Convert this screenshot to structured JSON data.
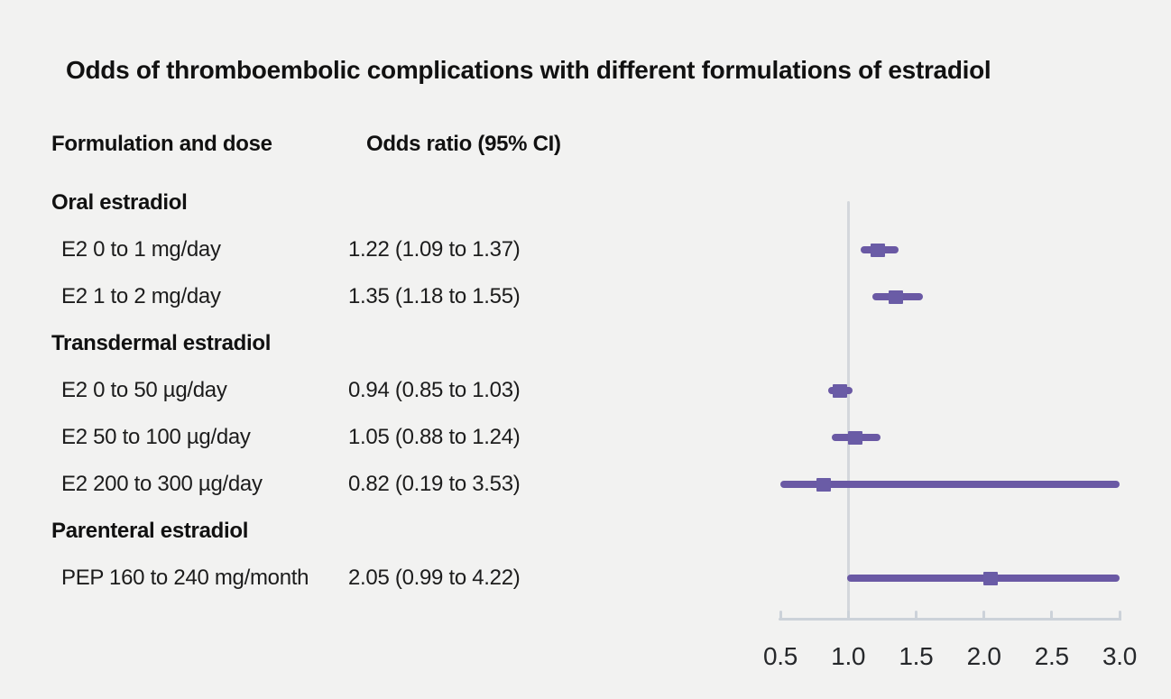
{
  "title": "Odds of thromboembolic complications with different formulations of estradiol",
  "columns": {
    "label_header": "Formulation and dose",
    "value_header": "Odds ratio (95% CI)"
  },
  "chart_data": {
    "type": "forest",
    "title": "Odds of thromboembolic complications with different formulations of estradiol",
    "xlim": [
      0.5,
      3.0
    ],
    "reference_line": 1.0,
    "ticks": [
      {
        "value": 0.5,
        "label": "0.5"
      },
      {
        "value": 1.0,
        "label": "1.0"
      },
      {
        "value": 1.5,
        "label": "1.5"
      },
      {
        "value": 2.0,
        "label": "2.0"
      },
      {
        "value": 2.5,
        "label": "2.5"
      },
      {
        "value": 3.0,
        "label": "3.0"
      }
    ],
    "groups": [
      {
        "header": "Oral estradiol",
        "rows": [
          {
            "label": "E2 0 to 1 mg/day",
            "value_text": "1.22 (1.09 to 1.37)",
            "or": 1.22,
            "ci_low": 1.09,
            "ci_high": 1.37
          },
          {
            "label": "E2 1 to 2 mg/day",
            "value_text": "1.35 (1.18 to 1.55)",
            "or": 1.35,
            "ci_low": 1.18,
            "ci_high": 1.55
          }
        ]
      },
      {
        "header": "Transdermal estradiol",
        "rows": [
          {
            "label": "E2 0 to 50 µg/day",
            "value_text": "0.94 (0.85 to 1.03)",
            "or": 0.94,
            "ci_low": 0.85,
            "ci_high": 1.03
          },
          {
            "label": "E2 50 to 100 µg/day",
            "value_text": "1.05 (0.88 to 1.24)",
            "or": 1.05,
            "ci_low": 0.88,
            "ci_high": 1.24
          },
          {
            "label": "E2 200 to 300 µg/day",
            "value_text": "0.82 (0.19 to 3.53)",
            "or": 0.82,
            "ci_low": 0.19,
            "ci_high": 3.53
          }
        ]
      },
      {
        "header": "Parenteral estradiol",
        "rows": [
          {
            "label": "PEP 160 to 240 mg/month",
            "value_text": "2.05 (0.99 to 4.22)",
            "or": 2.05,
            "ci_low": 0.99,
            "ci_high": 4.22
          }
        ]
      }
    ],
    "colors": {
      "marker": "#6a5ca6",
      "ci_line": "#6a59a4",
      "reference_line": "#d4d7dc",
      "axis": "#ccd2d9",
      "text": "#1c1c1c",
      "background": "#f2f2f1"
    },
    "legend": null,
    "grid": false
  }
}
